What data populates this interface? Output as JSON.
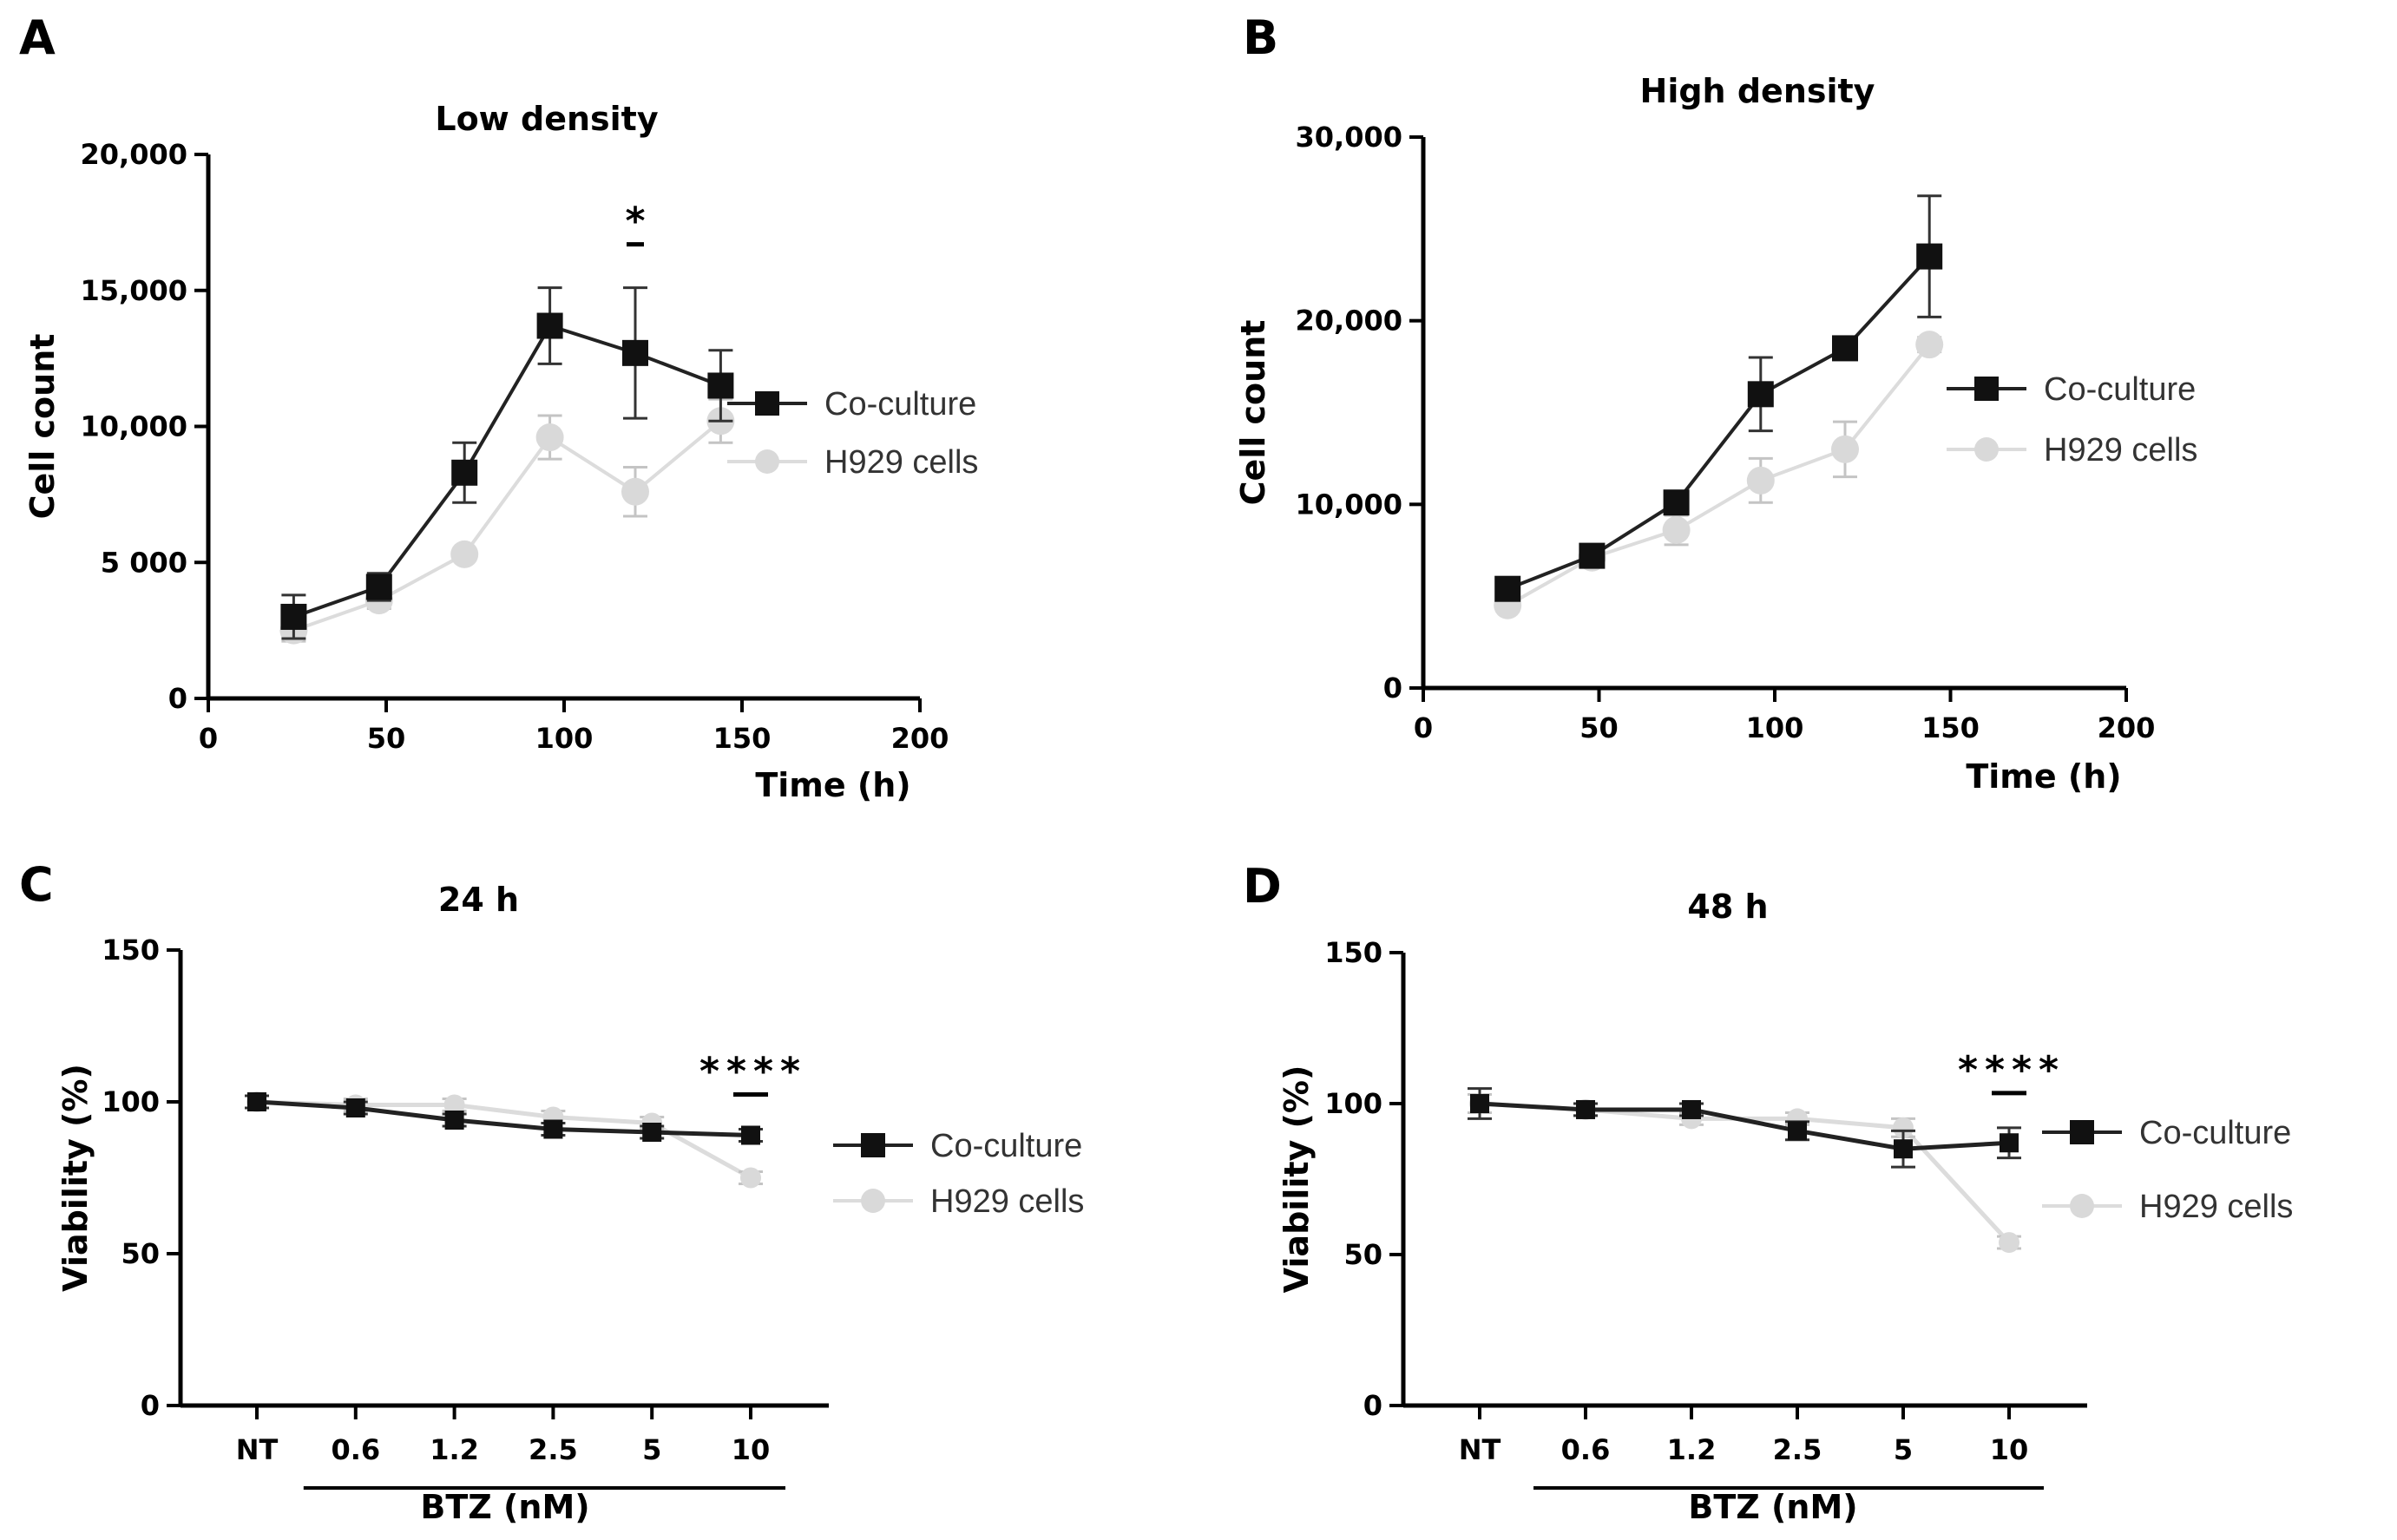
{
  "figure": {
    "panel_labels": [
      "A",
      "B",
      "C",
      "D"
    ]
  },
  "legend": {
    "coculture": "Co-culture",
    "h929": "H929 cells"
  },
  "colors": {
    "coculture": "#111111",
    "h929": "#d9d9d9",
    "h929_err": "#c4c4c4"
  },
  "chart_data": [
    {
      "type": "line",
      "panel": "A",
      "title": "Low density",
      "xlabel": "Time (h)",
      "ylabel": "Cell count",
      "xlim": [
        0,
        200
      ],
      "ylim": [
        0,
        20000
      ],
      "xticks": [
        0,
        50,
        100,
        150,
        200
      ],
      "xticklabels": [
        "0",
        "50",
        "100",
        "150",
        "200"
      ],
      "yticks": [
        0,
        5000,
        10000,
        15000,
        20000
      ],
      "yticklabels": [
        "0",
        "5 000",
        "10,000",
        "15,000",
        "20,000"
      ],
      "series": [
        {
          "name": "Co-culture",
          "x": [
            24,
            48,
            72,
            96,
            120,
            144
          ],
          "values": [
            3000,
            4100,
            8300,
            13700,
            12700,
            11500
          ],
          "err": [
            800,
            500,
            1100,
            1400,
            2400,
            1300
          ]
        },
        {
          "name": "H929 cells",
          "x": [
            24,
            48,
            72,
            96,
            120,
            144
          ],
          "values": [
            2500,
            3600,
            5300,
            9600,
            7600,
            10200
          ],
          "err": [
            400,
            300,
            200,
            800,
            900,
            800
          ]
        }
      ],
      "significance": [
        {
          "x": 120,
          "label": "*"
        }
      ]
    },
    {
      "type": "line",
      "panel": "B",
      "title": "High density",
      "xlabel": "Time (h)",
      "ylabel": "Cell count",
      "xlim": [
        0,
        200
      ],
      "ylim": [
        0,
        30000
      ],
      "xticks": [
        0,
        50,
        100,
        150,
        200
      ],
      "xticklabels": [
        "0",
        "50",
        "100",
        "150",
        "200"
      ],
      "yticks": [
        0,
        10000,
        20000,
        30000
      ],
      "yticklabels": [
        "0",
        "10,000",
        "20,000",
        "30,000"
      ],
      "series": [
        {
          "name": "Co-culture",
          "x": [
            24,
            48,
            72,
            96,
            120,
            144
          ],
          "values": [
            5400,
            7200,
            10100,
            16000,
            18500,
            23500
          ],
          "err": [
            400,
            400,
            400,
            2000,
            600,
            3300
          ]
        },
        {
          "name": "H929 cells",
          "x": [
            24,
            48,
            72,
            96,
            120,
            144
          ],
          "values": [
            4500,
            7100,
            8600,
            11300,
            13000,
            18700
          ],
          "err": [
            300,
            300,
            800,
            1200,
            1500,
            400
          ]
        }
      ],
      "significance": []
    },
    {
      "type": "line",
      "panel": "C",
      "title": "24 h",
      "xlabel": "BTZ (nM)",
      "ylabel": "Viability (%)",
      "categories": [
        "NT",
        "0.6",
        "1.2",
        "2.5",
        "5",
        "10"
      ],
      "ylim": [
        0,
        150
      ],
      "yticks": [
        0,
        50,
        100,
        150
      ],
      "yticklabels": [
        "0",
        "50",
        "100",
        "150"
      ],
      "series": [
        {
          "name": "Co-culture",
          "values": [
            100,
            98,
            94,
            91,
            90,
            89
          ],
          "err": [
            2,
            2,
            2,
            2,
            2,
            2
          ]
        },
        {
          "name": "H929 cells",
          "values": [
            100,
            99,
            99,
            95,
            93,
            75
          ],
          "err": [
            2,
            2,
            2,
            2,
            2,
            2
          ]
        }
      ],
      "significance": [
        {
          "category": "10",
          "label": "****"
        }
      ]
    },
    {
      "type": "line",
      "panel": "D",
      "title": "48 h",
      "xlabel": "BTZ (nM)",
      "ylabel": "Viability (%)",
      "categories": [
        "NT",
        "0.6",
        "1.2",
        "2.5",
        "5",
        "10"
      ],
      "ylim": [
        0,
        150
      ],
      "yticks": [
        0,
        50,
        100,
        150
      ],
      "yticklabels": [
        "0",
        "50",
        "100",
        "150"
      ],
      "series": [
        {
          "name": "Co-culture",
          "values": [
            100,
            98,
            98,
            91,
            85,
            87
          ],
          "err": [
            5,
            2,
            2,
            3,
            6,
            5
          ]
        },
        {
          "name": "H929 cells",
          "values": [
            100,
            98,
            95,
            95,
            92,
            54
          ],
          "err": [
            3,
            2,
            2,
            2,
            3,
            2
          ]
        }
      ],
      "significance": [
        {
          "category": "10",
          "label": "****"
        }
      ]
    }
  ]
}
